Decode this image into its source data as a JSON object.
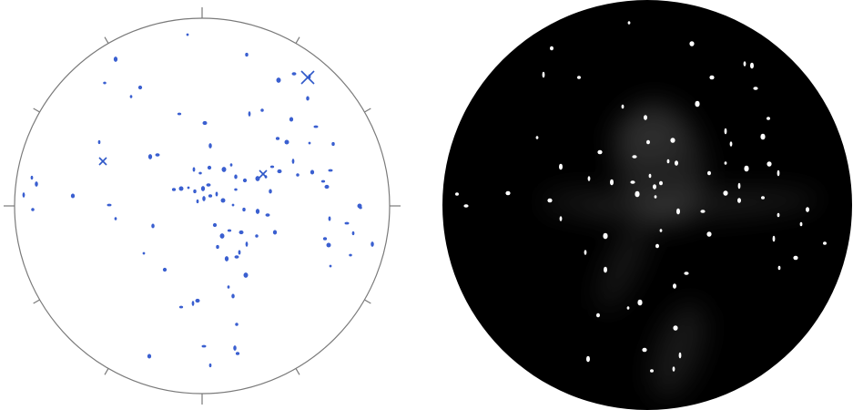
{
  "panels": [
    {
      "id": "stereonet-plot",
      "style": "white background, thin grey primitive circle with tick marks",
      "point_color": "#3a5fd0",
      "cross_color": "#2f58c9"
    },
    {
      "id": "density-image",
      "style": "black disc with grey blurred density streaks and white spots",
      "background": "#000000",
      "spot_color": "#ffffff"
    }
  ]
}
